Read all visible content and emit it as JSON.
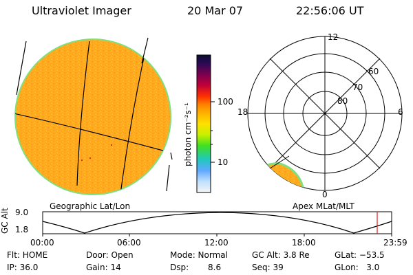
{
  "header": {
    "instrument": "Ultraviolet Imager",
    "date": "20 Mar 07",
    "time": "22:56:06 UT"
  },
  "colorbar": {
    "label": "photon cm⁻²s⁻¹",
    "ticks": [
      "100",
      "10"
    ],
    "colors": [
      "#0b0b30",
      "#2a0a55",
      "#7a0050",
      "#c00038",
      "#ff3000",
      "#ff8000",
      "#ffb000",
      "#ffe000",
      "#c8f000",
      "#40e020",
      "#20c8c0",
      "#60a8ff",
      "#c0e0ff",
      "#f4f4f4"
    ]
  },
  "geo_panel": {
    "label": "Geographic Lat/Lon",
    "disk_color": "#ffab1f",
    "rim_color": "#7fe07f"
  },
  "polar_panel": {
    "label": "Apex MLat/MLT",
    "mlt_labels": [
      "12",
      "18",
      "6",
      "0"
    ],
    "lat_labels": [
      "60",
      "70",
      "80"
    ]
  },
  "alt_plot": {
    "ylabel": "GC Alt",
    "yticks": [
      "9.0",
      "1.8"
    ],
    "xticks": [
      "00:00",
      "06:00",
      "12:00",
      "18:00",
      "23:59"
    ],
    "marker_color": "#d02020"
  },
  "footer": {
    "flt": "Flt: HOME",
    "door": "Door: Open",
    "mode": "Mode: Normal",
    "gcalt": "GC Alt: 3.8 Re",
    "glat": "GLat: −53.5",
    "ip": "IP: 36.0",
    "gain": "Gain: 14",
    "dsp_label": "Dsp:",
    "dsp_value": "8.6",
    "seq": "Seq: 39",
    "glon": "GLon:   3.0"
  }
}
